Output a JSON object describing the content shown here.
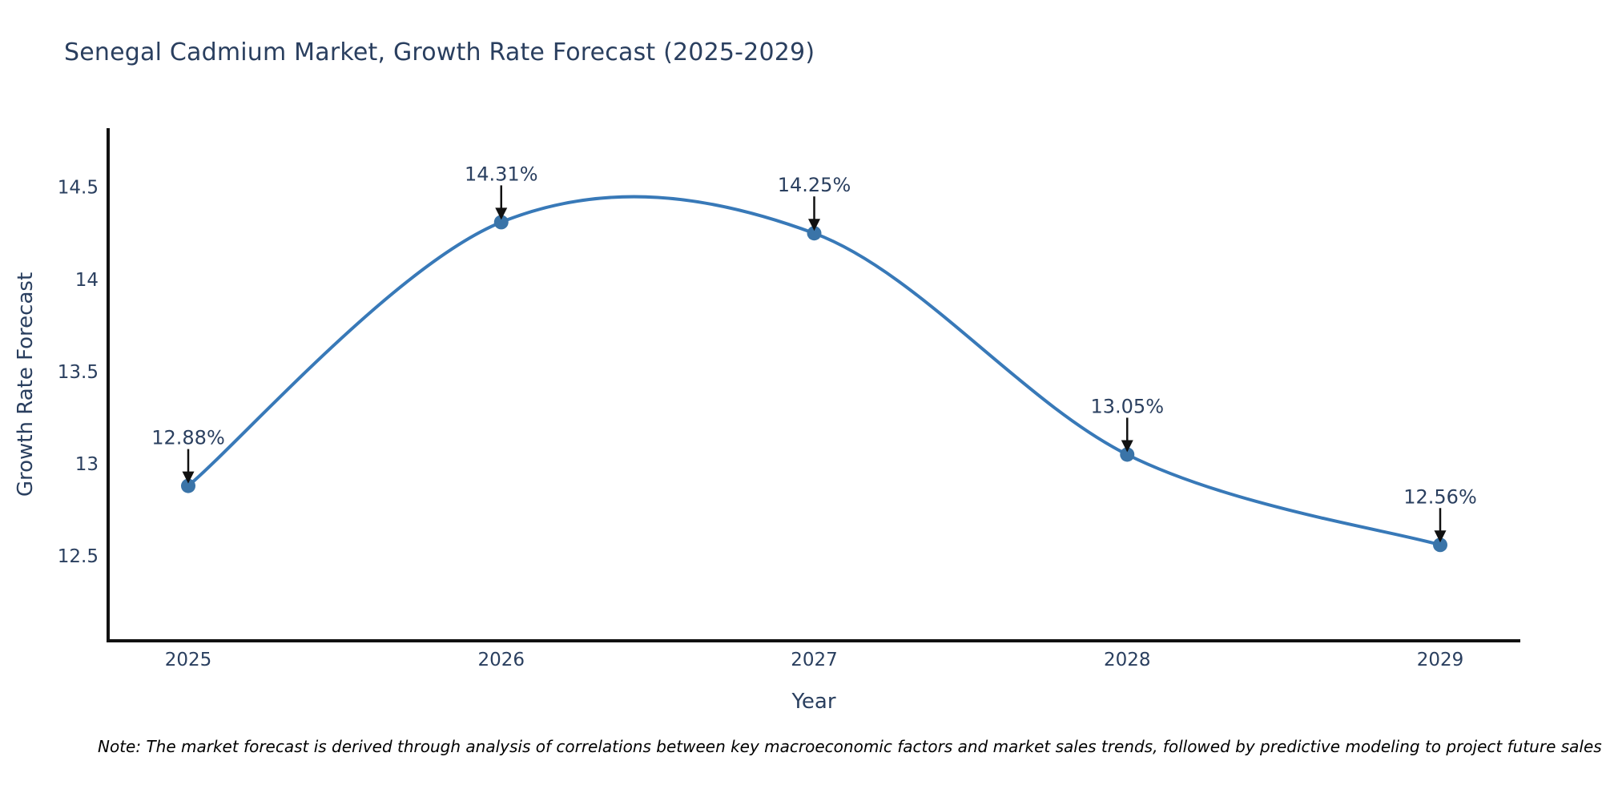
{
  "title": "Senegal Cadmium Market, Growth Rate Forecast (2025-2029)",
  "note": "Note: The market forecast is derived through analysis of correlations between key macroeconomic factors and market sales trends, followed by predictive modeling to project future sales.",
  "colors": {
    "line": "#3879b8",
    "marker": "#3a74a8",
    "axis": "#111111",
    "arrow": "#111111",
    "text": "#2a3f5f",
    "background": "#ffffff"
  },
  "chart_data": {
    "type": "line",
    "line_shape": "spline",
    "title": "Senegal Cadmium Market, Growth Rate Forecast (2025-2029)",
    "xlabel": "Year",
    "ylabel": "Growth Rate Forecast",
    "x": [
      2025,
      2026,
      2027,
      2028,
      2029
    ],
    "y": [
      12.88,
      14.31,
      14.25,
      13.05,
      12.56
    ],
    "point_labels": [
      "12.88%",
      "14.31%",
      "14.25%",
      "13.05%",
      "12.56%"
    ],
    "x_tick_labels": [
      "2025",
      "2026",
      "2027",
      "2028",
      "2029"
    ],
    "y_tick_values": [
      12.5,
      13,
      13.5,
      14,
      14.5
    ],
    "y_tick_labels": [
      "12.5",
      "13",
      "13.5",
      "14",
      "14.5"
    ],
    "ylim": [
      12.04,
      14.82
    ],
    "grid": false,
    "legend": "none",
    "markers": true,
    "annotations_arrows": true
  }
}
